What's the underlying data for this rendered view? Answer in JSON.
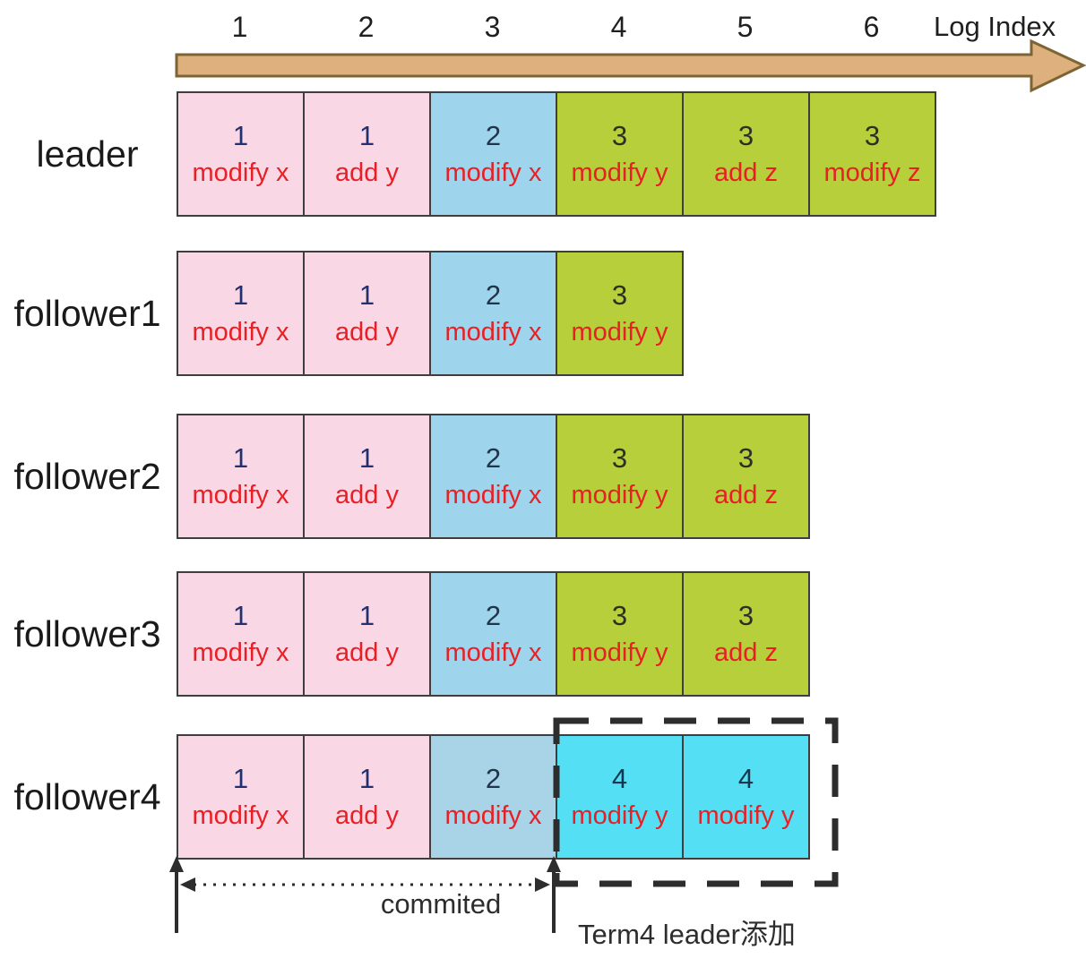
{
  "axis": {
    "label": "Log Index",
    "ticks": [
      "1",
      "2",
      "3",
      "4",
      "5",
      "6"
    ]
  },
  "rows": [
    {
      "label": "leader",
      "cells": [
        {
          "term": "1",
          "op": "modify x",
          "fill": "pink"
        },
        {
          "term": "1",
          "op": "add y",
          "fill": "pink"
        },
        {
          "term": "2",
          "op": "modify x",
          "fill": "blue"
        },
        {
          "term": "3",
          "op": "modify y",
          "fill": "green"
        },
        {
          "term": "3",
          "op": "add z",
          "fill": "green"
        },
        {
          "term": "3",
          "op": "modify z",
          "fill": "green"
        }
      ]
    },
    {
      "label": "follower1",
      "cells": [
        {
          "term": "1",
          "op": "modify x",
          "fill": "pink"
        },
        {
          "term": "1",
          "op": "add y",
          "fill": "pink"
        },
        {
          "term": "2",
          "op": "modify x",
          "fill": "blue"
        },
        {
          "term": "3",
          "op": "modify y",
          "fill": "green"
        }
      ]
    },
    {
      "label": "follower2",
      "cells": [
        {
          "term": "1",
          "op": "modify x",
          "fill": "pink"
        },
        {
          "term": "1",
          "op": "add y",
          "fill": "pink"
        },
        {
          "term": "2",
          "op": "modify x",
          "fill": "blue"
        },
        {
          "term": "3",
          "op": "modify y",
          "fill": "green"
        },
        {
          "term": "3",
          "op": "add z",
          "fill": "green"
        }
      ]
    },
    {
      "label": "follower3",
      "cells": [
        {
          "term": "1",
          "op": "modify x",
          "fill": "pink"
        },
        {
          "term": "1",
          "op": "add y",
          "fill": "pink"
        },
        {
          "term": "2",
          "op": "modify x",
          "fill": "blue"
        },
        {
          "term": "3",
          "op": "modify y",
          "fill": "green"
        },
        {
          "term": "3",
          "op": "add z",
          "fill": "green"
        }
      ]
    },
    {
      "label": "follower4",
      "cells": [
        {
          "term": "1",
          "op": "modify x",
          "fill": "pink"
        },
        {
          "term": "1",
          "op": "add y",
          "fill": "pink"
        },
        {
          "term": "2",
          "op": "modify x",
          "fill": "blue_muted"
        },
        {
          "term": "4",
          "op": "modify y",
          "fill": "cyan"
        },
        {
          "term": "4",
          "op": "modify y",
          "fill": "cyan"
        }
      ]
    }
  ],
  "annotations": {
    "committed_label": "commited",
    "term4_label": "Term4 leader添加"
  },
  "colors": {
    "pink": "#fad7e5",
    "blue": "#9ed4ec",
    "blue_muted": "#a9d3e6",
    "green": "#b6cf3a",
    "cyan": "#55dff5",
    "cell_border": "#3e3e3e",
    "op_text": "#e81f25",
    "term1_text": "#203071",
    "term2_text": "#20344a",
    "term3_text": "#2c2f25",
    "term4_text": "#14374f",
    "axis_arrow_fill": "#ddb07e",
    "axis_arrow_stroke": "#7d6434",
    "annotation": "#2d2d2d",
    "label_text": "#1a1a1a"
  }
}
